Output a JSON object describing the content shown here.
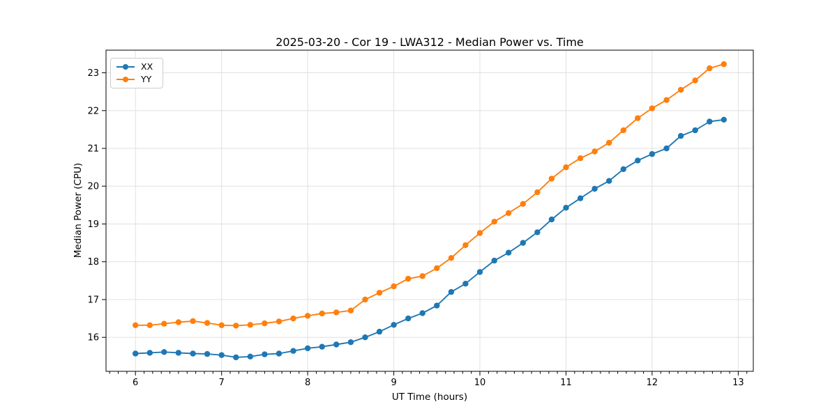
{
  "chart_data": {
    "type": "line",
    "title": "2025-03-20 - Cor 19 - LWA312 - Median Power vs. Time",
    "xlabel": "UT Time (hours)",
    "ylabel": "Median Power (CPU)",
    "xlim": [
      5.658,
      13.175
    ],
    "ylim": [
      15.1,
      23.6
    ],
    "x_major_ticks": [
      6,
      7,
      8,
      9,
      10,
      11,
      12,
      13
    ],
    "x_minor_tick_step": 0.1,
    "y_major_ticks": [
      16,
      17,
      18,
      19,
      20,
      21,
      22,
      23
    ],
    "grid": "major",
    "grid_color": "#e0e0e0",
    "axis_color": "#000000",
    "text_color": "#000000",
    "background_color": "#ffffff",
    "legend_position": "upper left",
    "marker": "circle",
    "x": [
      6,
      6.167,
      6.333,
      6.5,
      6.667,
      6.833,
      7,
      7.167,
      7.333,
      7.5,
      7.667,
      7.833,
      8,
      8.167,
      8.333,
      8.5,
      8.667,
      8.833,
      9,
      9.167,
      9.333,
      9.5,
      9.667,
      9.833,
      10,
      10.167,
      10.333,
      10.5,
      10.667,
      10.833,
      11,
      11.167,
      11.333,
      11.5,
      11.667,
      11.833,
      12,
      12.167,
      12.333,
      12.5,
      12.667,
      12.833
    ],
    "series": [
      {
        "name": "XX",
        "color": "#1f77b4",
        "values": [
          15.57,
          15.59,
          15.61,
          15.59,
          15.57,
          15.56,
          15.53,
          15.47,
          15.49,
          15.55,
          15.57,
          15.64,
          15.71,
          15.75,
          15.81,
          15.87,
          16.0,
          16.15,
          16.33,
          16.5,
          16.64,
          16.84,
          17.2,
          17.42,
          17.73,
          18.03,
          18.24,
          18.5,
          18.78,
          19.12,
          19.43,
          19.68,
          19.93,
          20.14,
          20.45,
          20.68,
          20.85,
          21.0,
          21.33,
          21.48,
          21.71,
          21.76
        ]
      },
      {
        "name": "YY",
        "color": "#ff7f0e",
        "values": [
          16.32,
          16.32,
          16.36,
          16.4,
          16.43,
          16.38,
          16.32,
          16.31,
          16.33,
          16.37,
          16.42,
          16.5,
          16.57,
          16.63,
          16.66,
          16.71,
          17.0,
          17.18,
          17.35,
          17.55,
          17.62,
          17.83,
          18.1,
          18.44,
          18.76,
          19.06,
          19.29,
          19.53,
          19.84,
          20.2,
          20.5,
          20.74,
          20.92,
          21.15,
          21.48,
          21.8,
          22.06,
          22.28,
          22.55,
          22.8,
          23.12,
          23.23
        ]
      }
    ]
  }
}
